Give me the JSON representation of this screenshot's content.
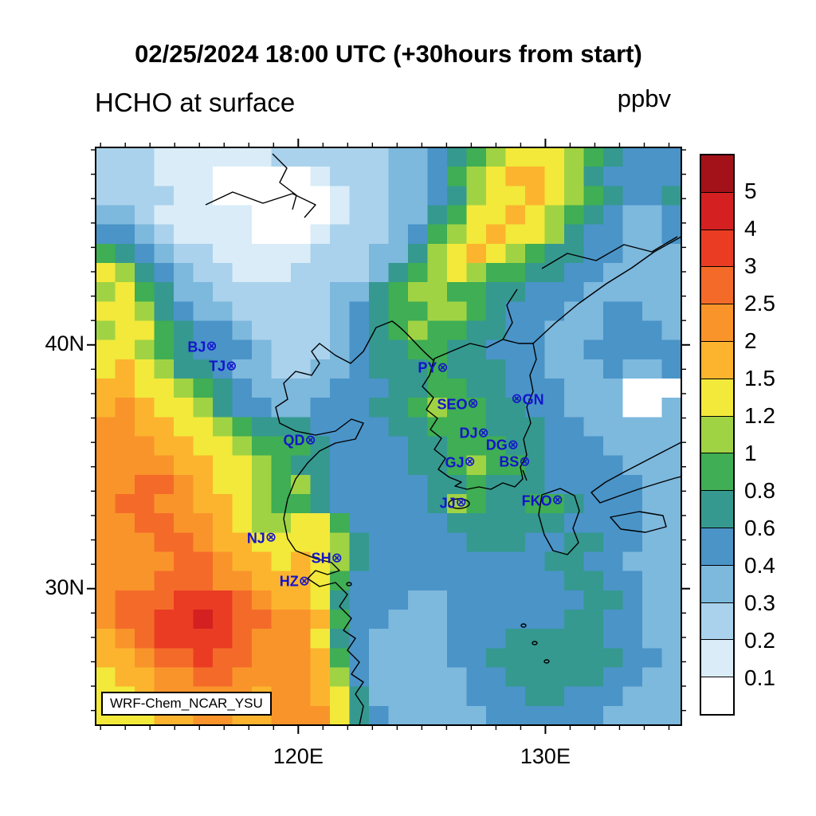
{
  "header": {
    "title": "02/25/2024 18:00 UTC (+30hours from start)",
    "subtitle_left": "HCHO at surface",
    "units_label": "ppbv"
  },
  "annotation_box": "WRF-Chem_NCAR_YSU",
  "axes": {
    "lon_range": [
      111.8,
      135.5
    ],
    "lat_range": [
      24.4,
      48.1
    ],
    "tick_interval_deg": 1,
    "lat_labels": [
      {
        "text": "40N",
        "lat": 40
      },
      {
        "text": "30N",
        "lat": 30
      }
    ],
    "lon_labels": [
      {
        "text": "120E",
        "lon": 120
      },
      {
        "text": "130E",
        "lon": 130
      }
    ]
  },
  "stations": [
    {
      "name": "BJ",
      "lon": 116.4,
      "lat": 39.9,
      "marker_side": "right"
    },
    {
      "name": "TJ",
      "lon": 117.2,
      "lat": 39.1,
      "marker_side": "right"
    },
    {
      "name": "QD",
      "lon": 120.4,
      "lat": 36.07,
      "marker_side": "right"
    },
    {
      "name": "PY",
      "lon": 125.75,
      "lat": 39.03,
      "marker_side": "right"
    },
    {
      "name": "SEO",
      "lon": 126.98,
      "lat": 37.55,
      "marker_side": "right"
    },
    {
      "name": "GN",
      "lon": 128.9,
      "lat": 37.75,
      "marker_side": "left"
    },
    {
      "name": "DJ",
      "lon": 127.4,
      "lat": 36.35,
      "marker_side": "right"
    },
    {
      "name": "DG",
      "lon": 128.6,
      "lat": 35.87,
      "marker_side": "right"
    },
    {
      "name": "GJ",
      "lon": 126.85,
      "lat": 35.16,
      "marker_side": "right"
    },
    {
      "name": "BS",
      "lon": 129.07,
      "lat": 35.18,
      "marker_side": "right"
    },
    {
      "name": "JJ",
      "lon": 126.5,
      "lat": 33.5,
      "marker_side": "right"
    },
    {
      "name": "FKO",
      "lon": 130.4,
      "lat": 33.6,
      "marker_side": "right"
    },
    {
      "name": "NJ",
      "lon": 118.8,
      "lat": 32.06,
      "marker_side": "right"
    },
    {
      "name": "SH",
      "lon": 121.47,
      "lat": 31.23,
      "marker_side": "right"
    },
    {
      "name": "HZ",
      "lon": 120.15,
      "lat": 30.27,
      "marker_side": "right"
    }
  ],
  "colorbar": {
    "labels_top_to_bottom": [
      "5",
      "4",
      "3",
      "2.5",
      "2",
      "1.5",
      "1.2",
      "1",
      "0.8",
      "0.6",
      "0.4",
      "0.3",
      "0.2",
      "0.1"
    ]
  },
  "chart_data": {
    "type": "heatmap",
    "title": "HCHO at surface",
    "units": "ppbv",
    "time_label": "02/25/2024 18:00 UTC (+30hours from start)",
    "model": "WRF-Chem_NCAR_YSU",
    "levels_ppbv": [
      0.1,
      0.2,
      0.3,
      0.4,
      0.6,
      0.8,
      1,
      1.2,
      1.5,
      2,
      2.5,
      3,
      4,
      5
    ],
    "palette": [
      "#ffffff",
      "#d9ecf8",
      "#aad2ec",
      "#7db8dd",
      "#4a94c8",
      "#35998f",
      "#3fae54",
      "#a0d344",
      "#f2e93b",
      "#fcb42e",
      "#f9942b",
      "#f46b29",
      "#ea3c23",
      "#d42020",
      "#a31219"
    ],
    "grid": {
      "ncols": 30,
      "nrows": 30,
      "lon_range": [
        111.8,
        135.5
      ],
      "lat_range": [
        24.4,
        48.1
      ],
      "encoding": "each char is a color index 0-9,a-e (low to high concentration), rows north to south",
      "rows": [
        "222111111222222334567888765444",
        "222111000001222334678998754444",
        "222211000000122334578898765445",
        "332111110000122335688987654334",
        "443211110001222346789887544334",
        "654322111112223357898765544333",
        "875432211122223567876655443333",
        "786533222222335677665544433333",
        "887543322222345667765444334433",
        "788654432222345676655443334443",
        "887654443222345566554443344444",
        "898755433223345556555443334334",
        "998876543333444556655444333000",
        "9a9887544334445567665544333003",
        "aa9988765554444556665554433333",
        "aaa998876665444455666554443333",
        "aaaa99887655444455676654444333",
        "aabba9887675444445565554444433",
        "abbaa9987665444445765566544433",
        "aabbaa987788644444555555444433",
        "aaabba998888754444455544554433",
        "aaaabba99898754444444445544333",
        "aaabbbaa9998644444444444554433",
        "abbbcccba998544433444444455433",
        "abbccdcbbaa9644333444444554433",
        "9abccccbaaa8543333444555554433",
        "99abbcbbaaa9643333445555555443",
        "899aabbaaaa9743333344555554433",
        "889aaaaa9aa9853333344455444333",
        "88899aa99aaa854333334444443333"
      ]
    }
  }
}
